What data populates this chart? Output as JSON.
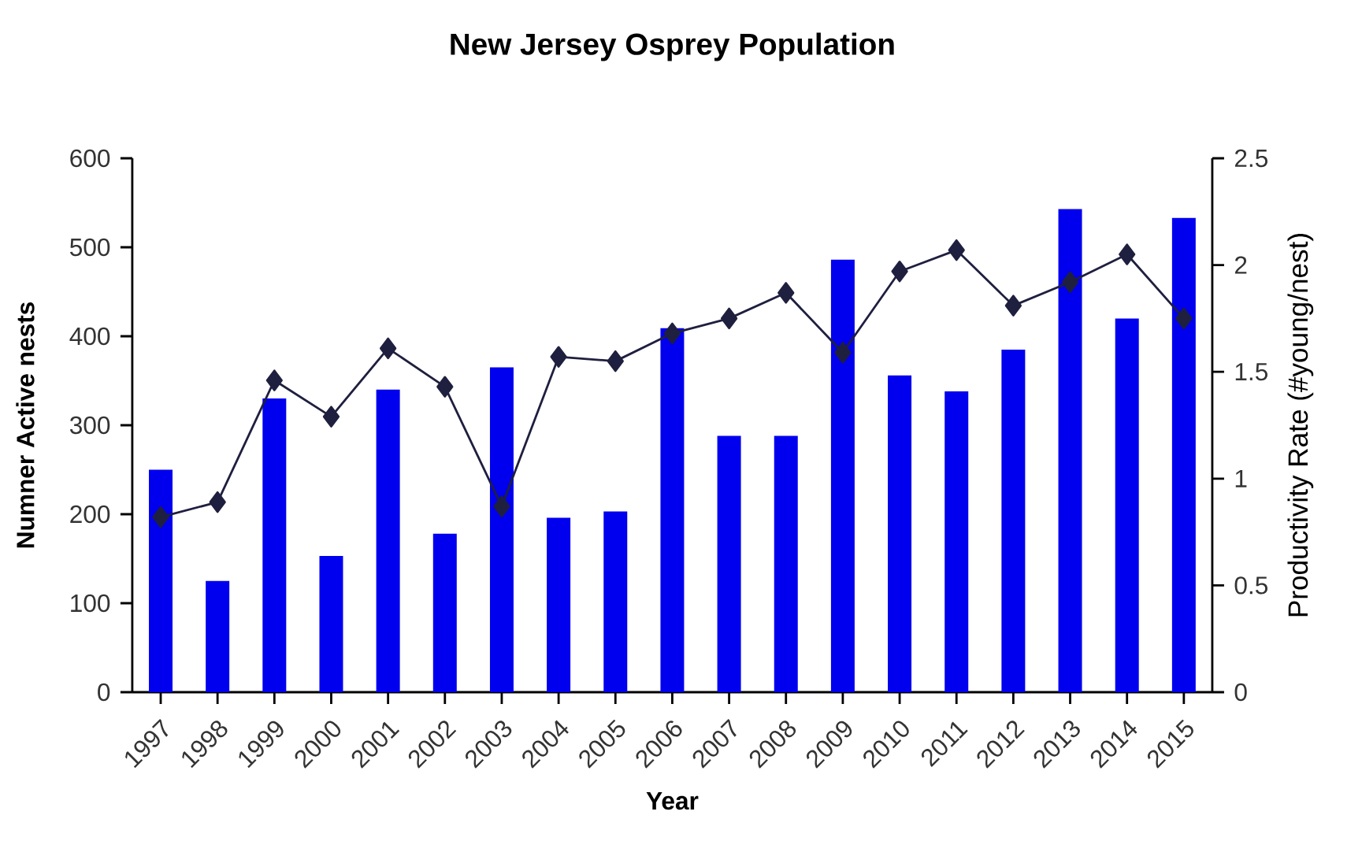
{
  "chart_data": {
    "type": "bar",
    "title": "New Jersey Osprey Population",
    "xlabel": "Year",
    "ylabel": "Numner Active nests",
    "y2label": "Productivity Rate (#young/nest)",
    "categories": [
      "1997",
      "1998",
      "1999",
      "2000",
      "2001",
      "2002",
      "2003",
      "2004",
      "2005",
      "2006",
      "2007",
      "2008",
      "2009",
      "2010",
      "2011",
      "2012",
      "2013",
      "2014",
      "2015"
    ],
    "series": [
      {
        "color": "#0000ee",
        "values": [
          250,
          125,
          330,
          153,
          340,
          178,
          365,
          196,
          203,
          409,
          288,
          288,
          486,
          356,
          338,
          385,
          543,
          420,
          533
        ]
      },
      {
        "type": "line",
        "axis": "y2",
        "color": "#1f1f3f",
        "marker": "diamond",
        "values": [
          0.82,
          0.89,
          1.46,
          1.29,
          1.61,
          1.43,
          0.87,
          1.57,
          1.55,
          1.68,
          1.75,
          1.87,
          1.59,
          1.97,
          2.07,
          1.81,
          1.92,
          2.05,
          1.75
        ]
      }
    ],
    "ylim": [
      0,
      600
    ],
    "yticks": [
      0,
      100,
      200,
      300,
      400,
      500,
      600
    ],
    "y2lim": [
      0,
      2.5
    ],
    "y2ticks": [
      0,
      0.5,
      1,
      1.5,
      2,
      2.5
    ],
    "grid": false
  }
}
